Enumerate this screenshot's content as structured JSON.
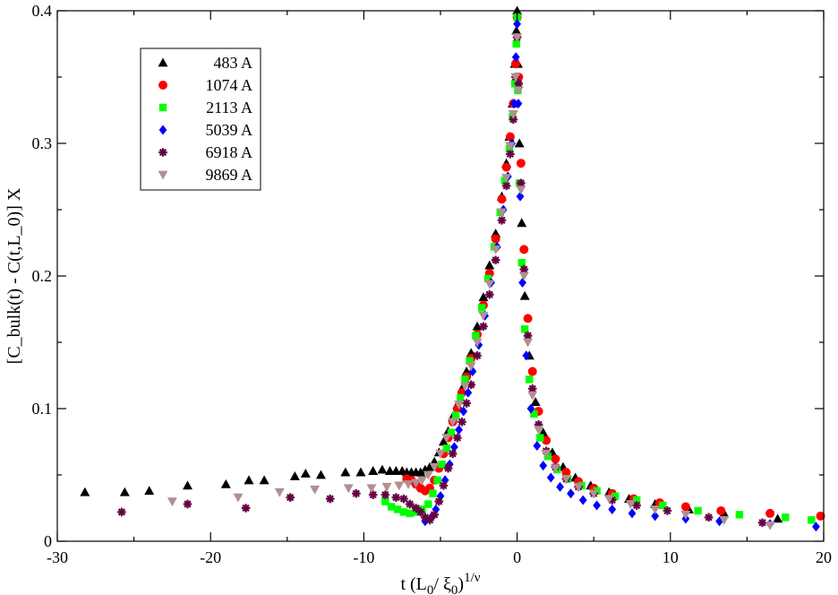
{
  "chart_data": {
    "type": "scatter",
    "title": "",
    "xlabel": {
      "main": "t (L",
      "sub1": "0",
      "mid": "/ ξ",
      "sub2": "0",
      "close": ")",
      "sup": "1/ν"
    },
    "ylabel": "[C_bulk(t) - C(t,L_0)] X",
    "xlim": [
      -30,
      20
    ],
    "ylim": [
      0,
      0.4
    ],
    "xticks": [
      -30,
      -20,
      -10,
      0,
      10,
      20
    ],
    "xtick_labels": [
      "-30",
      "-20",
      "-10",
      "0",
      "10",
      "20"
    ],
    "yticks": [
      0,
      0.1,
      0.2,
      0.3,
      0.4
    ],
    "ytick_labels": [
      "0",
      "0.1",
      "0.2",
      "0.3",
      "0.4"
    ],
    "grid": false,
    "legend_position": "top-left",
    "series": [
      {
        "name": "483 A",
        "marker": "triangle-up",
        "color": "#000000",
        "x": [
          -28.2,
          -25.6,
          -24,
          -21.5,
          -19,
          -17.5,
          -16.5,
          -14.5,
          -13.8,
          -12.8,
          -11.2,
          -10.2,
          -9.4,
          -8.8,
          -8.3,
          -7.9,
          -7.5,
          -7.2,
          -6.9,
          -6.6,
          -6.3,
          -6,
          -5.7,
          -5.4,
          -5.1,
          -4.8,
          -4.5,
          -4.2,
          -3.9,
          -3.6,
          -3.3,
          -3,
          -2.6,
          -2.2,
          -1.8,
          -1.4,
          -1.0,
          -0.7,
          -0.5,
          -0.3,
          -0.15,
          -0.05,
          0,
          0.05,
          0.15,
          0.3,
          0.5,
          0.8,
          1.2,
          1.7,
          2.3,
          3,
          3.8,
          4.8,
          6,
          7.3,
          9,
          11.2,
          13.5,
          17
        ],
        "y": [
          0.037,
          0.037,
          0.038,
          0.042,
          0.043,
          0.046,
          0.046,
          0.049,
          0.051,
          0.05,
          0.052,
          0.052,
          0.053,
          0.054,
          0.053,
          0.053,
          0.053,
          0.052,
          0.052,
          0.052,
          0.052,
          0.054,
          0.056,
          0.06,
          0.067,
          0.075,
          0.083,
          0.094,
          0.103,
          0.115,
          0.128,
          0.142,
          0.162,
          0.184,
          0.208,
          0.232,
          0.26,
          0.285,
          0.305,
          0.33,
          0.36,
          0.385,
          0.4,
          0.36,
          0.3,
          0.24,
          0.185,
          0.14,
          0.105,
          0.082,
          0.067,
          0.056,
          0.048,
          0.042,
          0.037,
          0.032,
          0.028,
          0.024,
          0.021,
          0.017
        ]
      },
      {
        "name": "1074 A",
        "marker": "circle",
        "color": "#ff0000",
        "x": [
          -7.2,
          -6.9,
          -6.6,
          -6.3,
          -6,
          -5.7,
          -5.4,
          -5.1,
          -4.8,
          -4.5,
          -4.2,
          -3.9,
          -3.6,
          -3.3,
          -3,
          -2.6,
          -2.2,
          -1.8,
          -1.4,
          -1.0,
          -0.7,
          -0.45,
          -0.25,
          -0.1,
          0,
          0.1,
          0.25,
          0.45,
          0.7,
          1.0,
          1.4,
          1.9,
          2.5,
          3.2,
          4,
          5,
          6.2,
          7.6,
          9.3,
          11,
          13.3,
          16.5,
          19.8
        ],
        "y": [
          0.047,
          0.046,
          0.043,
          0.04,
          0.038,
          0.04,
          0.046,
          0.055,
          0.066,
          0.078,
          0.09,
          0.1,
          0.112,
          0.124,
          0.138,
          0.156,
          0.178,
          0.202,
          0.228,
          0.258,
          0.282,
          0.305,
          0.33,
          0.36,
          0.395,
          0.35,
          0.285,
          0.22,
          0.168,
          0.128,
          0.098,
          0.076,
          0.062,
          0.052,
          0.045,
          0.04,
          0.036,
          0.032,
          0.029,
          0.026,
          0.023,
          0.021,
          0.019
        ]
      },
      {
        "name": "2113 A",
        "marker": "square",
        "color": "#00ff00",
        "x": [
          -8.6,
          -8.2,
          -7.8,
          -7.4,
          -7,
          -6.6,
          -6.2,
          -5.8,
          -5.5,
          -5.2,
          -4.9,
          -4.6,
          -4.3,
          -4,
          -3.7,
          -3.4,
          -3.1,
          -2.7,
          -2.3,
          -1.9,
          -1.5,
          -1.1,
          -0.8,
          -0.5,
          -0.3,
          -0.15,
          -0.05,
          0,
          0.05,
          0.15,
          0.3,
          0.5,
          0.8,
          1.1,
          1.5,
          2,
          2.6,
          3.3,
          4.2,
          5.2,
          6.4,
          7.8,
          9.5,
          11.8,
          14.5,
          17.5,
          19.2
        ],
        "y": [
          0.03,
          0.026,
          0.024,
          0.022,
          0.021,
          0.022,
          0.024,
          0.028,
          0.036,
          0.046,
          0.058,
          0.07,
          0.082,
          0.095,
          0.108,
          0.122,
          0.136,
          0.155,
          0.176,
          0.198,
          0.222,
          0.248,
          0.272,
          0.296,
          0.32,
          0.345,
          0.375,
          0.395,
          0.34,
          0.27,
          0.21,
          0.16,
          0.122,
          0.096,
          0.078,
          0.064,
          0.054,
          0.047,
          0.042,
          0.038,
          0.034,
          0.031,
          0.027,
          0.023,
          0.02,
          0.018,
          0.016
        ]
      },
      {
        "name": "5039 A",
        "marker": "diamond",
        "color": "#0000ff",
        "x": [
          -6,
          -5.6,
          -5.3,
          -5,
          -4.7,
          -4.4,
          -4.1,
          -3.8,
          -3.5,
          -3.2,
          -2.9,
          -2.5,
          -2.1,
          -1.7,
          -1.3,
          -0.9,
          -0.6,
          -0.35,
          -0.2,
          -0.08,
          0,
          0.08,
          0.2,
          0.35,
          0.6,
          0.9,
          1.3,
          1.7,
          2.2,
          2.8,
          3.5,
          4.3,
          5.2,
          6.2,
          7.5,
          9,
          11,
          13.2,
          16.5,
          19.5
        ],
        "y": [
          0.015,
          0.018,
          0.024,
          0.034,
          0.046,
          0.058,
          0.071,
          0.084,
          0.098,
          0.112,
          0.128,
          0.148,
          0.17,
          0.195,
          0.222,
          0.25,
          0.275,
          0.3,
          0.33,
          0.365,
          0.39,
          0.33,
          0.26,
          0.195,
          0.14,
          0.1,
          0.072,
          0.057,
          0.048,
          0.041,
          0.036,
          0.031,
          0.027,
          0.024,
          0.021,
          0.019,
          0.017,
          0.015,
          0.013,
          0.011
        ]
      },
      {
        "name": "6918 A",
        "marker": "star",
        "color": "#660044",
        "x": [
          -25.8,
          -21.5,
          -17.7,
          -14.8,
          -12.2,
          -10.5,
          -9.4,
          -8.6,
          -7.9,
          -7.4,
          -7,
          -6.6,
          -6.3,
          -6,
          -5.7,
          -5.4,
          -5.1,
          -4.8,
          -4.5,
          -4.2,
          -3.9,
          -3.6,
          -3.3,
          -3,
          -2.6,
          -2.2,
          -1.8,
          -1.4,
          -1.0,
          -0.7,
          -0.45,
          -0.25,
          -0.1,
          0,
          0.1,
          0.25,
          0.45,
          0.7,
          1,
          1.4,
          1.9,
          2.5,
          3.2,
          4,
          5,
          6.2,
          7.8,
          9.8,
          12.5,
          16
        ],
        "y": [
          0.022,
          0.028,
          0.025,
          0.033,
          0.032,
          0.036,
          0.035,
          0.035,
          0.033,
          0.032,
          0.028,
          0.025,
          0.022,
          0.018,
          0.016,
          0.02,
          0.03,
          0.042,
          0.055,
          0.066,
          0.078,
          0.09,
          0.104,
          0.118,
          0.14,
          0.162,
          0.186,
          0.212,
          0.242,
          0.268,
          0.292,
          0.318,
          0.35,
          0.38,
          0.345,
          0.27,
          0.205,
          0.155,
          0.115,
          0.088,
          0.068,
          0.056,
          0.047,
          0.041,
          0.036,
          0.031,
          0.027,
          0.023,
          0.018,
          0.014
        ]
      },
      {
        "name": "9869 A",
        "marker": "triangle-down",
        "color": "#b09090",
        "x": [
          -22.5,
          -18.2,
          -15.5,
          -13.2,
          -11,
          -9.5,
          -8.5,
          -7.7,
          -7.1,
          -6.6,
          -6.2,
          -5.8,
          -5.4,
          -5,
          -4.6,
          -4.2,
          -3.8,
          -3.4,
          -3,
          -2.6,
          -2.2,
          -1.8,
          -1.4,
          -1.0,
          -0.7,
          -0.45,
          -0.25,
          -0.1,
          0,
          0.1,
          0.25,
          0.45,
          0.7,
          1,
          1.4,
          1.9,
          2.5,
          3.2,
          4,
          5,
          6,
          7.4,
          9,
          11,
          13.5,
          16.5
        ],
        "y": [
          0.03,
          0.033,
          0.037,
          0.039,
          0.04,
          0.04,
          0.041,
          0.042,
          0.043,
          0.044,
          0.046,
          0.05,
          0.056,
          0.066,
          0.078,
          0.09,
          0.103,
          0.117,
          0.132,
          0.15,
          0.17,
          0.194,
          0.22,
          0.248,
          0.274,
          0.298,
          0.322,
          0.35,
          0.38,
          0.34,
          0.265,
          0.2,
          0.15,
          0.11,
          0.084,
          0.066,
          0.055,
          0.047,
          0.041,
          0.036,
          0.032,
          0.028,
          0.024,
          0.02,
          0.016,
          0.012
        ]
      }
    ]
  }
}
